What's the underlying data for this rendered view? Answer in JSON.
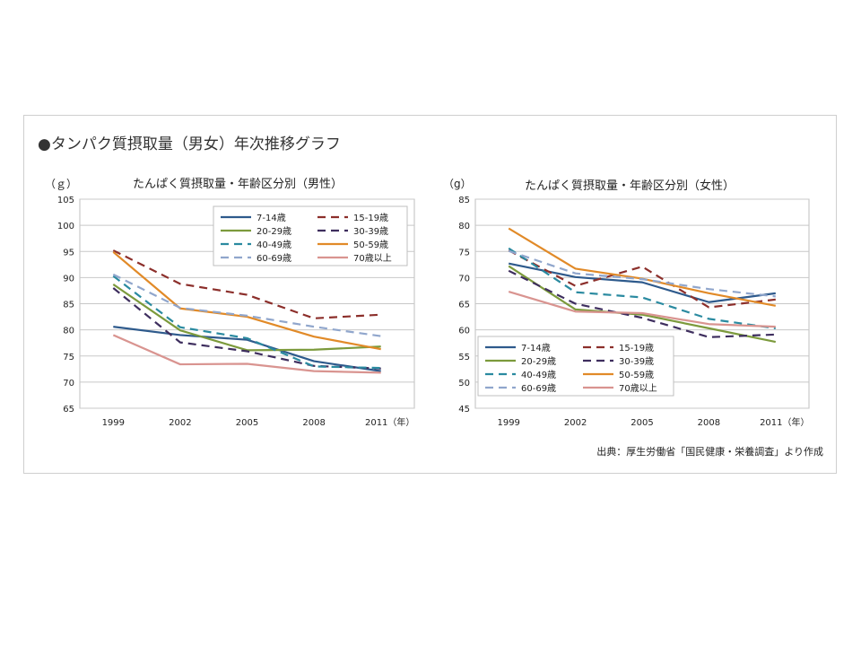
{
  "page": {
    "title": "●タンパク質摂取量（男女）年次推移グラフ",
    "source": "出典：厚生労働省「国民健康・栄養調査」より作成"
  },
  "chart_data": [
    {
      "type": "line",
      "title": "たんぱく質摂取量・年齢区分別（男性）",
      "ylabel": "（ｇ）",
      "xlabel": "",
      "x": [
        "1999",
        "2002",
        "2005",
        "2008",
        "2011（年）"
      ],
      "ylim": [
        65,
        105
      ],
      "yticks": [
        65,
        70,
        75,
        80,
        85,
        90,
        95,
        100,
        105
      ],
      "grid": true,
      "legend": "top-right",
      "series": [
        {
          "name": "7-14歳",
          "color": "#2e5a8c",
          "dash": "solid",
          "values": [
            80.6,
            79.0,
            78.1,
            74.0,
            72.1
          ]
        },
        {
          "name": "15-19歳",
          "color": "#8c2f2b",
          "dash": "dashed",
          "values": [
            95.2,
            88.8,
            86.7,
            82.2,
            82.9
          ]
        },
        {
          "name": "20-29歳",
          "color": "#7c9a3c",
          "dash": "solid",
          "values": [
            88.7,
            79.9,
            76.1,
            76.2,
            76.8
          ]
        },
        {
          "name": "30-39歳",
          "color": "#3e2e5e",
          "dash": "dashed",
          "values": [
            88.0,
            77.6,
            75.9,
            73.1,
            72.6
          ]
        },
        {
          "name": "40-49歳",
          "color": "#2a8aa0",
          "dash": "dashed",
          "values": [
            90.3,
            80.5,
            78.4,
            73.0,
            72.7
          ]
        },
        {
          "name": "50-59歳",
          "color": "#e18a28",
          "dash": "solid",
          "values": [
            94.9,
            84.1,
            82.5,
            78.7,
            76.3
          ]
        },
        {
          "name": "60-69歳",
          "color": "#90a6cc",
          "dash": "dashed",
          "values": [
            90.6,
            84.2,
            82.7,
            80.6,
            78.8
          ]
        },
        {
          "name": "70歳以上",
          "color": "#d99490",
          "dash": "solid",
          "values": [
            79.0,
            73.4,
            73.5,
            72.1,
            71.8
          ]
        }
      ]
    },
    {
      "type": "line",
      "title": "たんぱく質摂取量・年齢区分別（女性）",
      "ylabel": "（g）",
      "xlabel": "",
      "x": [
        "1999",
        "2002",
        "2005",
        "2008",
        "2011（年）"
      ],
      "ylim": [
        45,
        85
      ],
      "yticks": [
        45,
        50,
        55,
        60,
        65,
        70,
        75,
        80,
        85
      ],
      "grid": true,
      "legend": "bottom-left",
      "series": [
        {
          "name": "7-14歳",
          "color": "#2e5a8c",
          "dash": "solid",
          "values": [
            72.7,
            70.1,
            69.1,
            65.3,
            67.0
          ]
        },
        {
          "name": "15-19歳",
          "color": "#8c2f2b",
          "dash": "dashed",
          "values": [
            75.2,
            68.4,
            72.1,
            64.3,
            65.8
          ]
        },
        {
          "name": "20-29歳",
          "color": "#7c9a3c",
          "dash": "solid",
          "values": [
            72.2,
            63.9,
            62.9,
            60.3,
            57.7
          ]
        },
        {
          "name": "30-39歳",
          "color": "#3e2e5e",
          "dash": "dashed",
          "values": [
            71.3,
            65.0,
            62.3,
            58.6,
            59.1
          ]
        },
        {
          "name": "40-49歳",
          "color": "#2a8aa0",
          "dash": "dashed",
          "values": [
            75.6,
            67.2,
            66.2,
            62.1,
            60.3
          ]
        },
        {
          "name": "50-59歳",
          "color": "#e18a28",
          "dash": "solid",
          "values": [
            79.4,
            71.7,
            69.8,
            67.0,
            64.6
          ]
        },
        {
          "name": "60-69歳",
          "color": "#90a6cc",
          "dash": "dashed",
          "values": [
            75.1,
            70.8,
            69.7,
            67.8,
            66.4
          ]
        },
        {
          "name": "70歳以上",
          "color": "#d99490",
          "dash": "solid",
          "values": [
            67.3,
            63.5,
            63.2,
            61.1,
            60.6
          ]
        }
      ]
    }
  ]
}
